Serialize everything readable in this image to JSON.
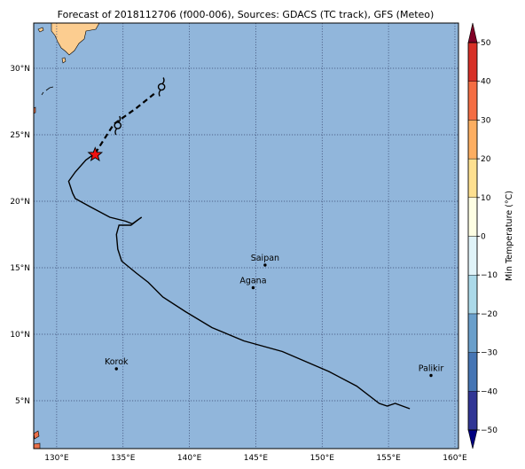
{
  "title": "Forecast of 2018112706 (f000-006), Sources: GDACS (TC track), GFS (Meteo)",
  "map": {
    "ocean_color": "#91b6db",
    "land_color": "#fccd90",
    "grid_style": "dotted",
    "x_ticks": [
      {
        "lon": 130,
        "label": "130°E"
      },
      {
        "lon": 135,
        "label": "135°E"
      },
      {
        "lon": 140,
        "label": "140°E"
      },
      {
        "lon": 145,
        "label": "145°E"
      },
      {
        "lon": 150,
        "label": "150°E"
      },
      {
        "lon": 155,
        "label": "155°E"
      },
      {
        "lon": 160,
        "label": "160°E"
      }
    ],
    "y_ticks": [
      {
        "lat": 5,
        "label": "5°N"
      },
      {
        "lat": 10,
        "label": "10°N"
      },
      {
        "lat": 15,
        "label": "15°N"
      },
      {
        "lat": 20,
        "label": "20°N"
      },
      {
        "lat": 25,
        "label": "25°N"
      },
      {
        "lat": 30,
        "label": "30°N"
      }
    ]
  },
  "track": {
    "observed": [
      [
        156.6,
        4.4
      ],
      [
        155.5,
        4.8
      ],
      [
        154.9,
        4.6
      ],
      [
        154.3,
        4.8
      ],
      [
        152.6,
        6.1
      ],
      [
        150.5,
        7.2
      ],
      [
        147.0,
        8.7
      ],
      [
        144.1,
        9.5
      ],
      [
        141.7,
        10.5
      ],
      [
        139.7,
        11.7
      ],
      [
        138.0,
        12.8
      ],
      [
        136.9,
        13.9
      ],
      [
        136.0,
        14.6
      ],
      [
        134.9,
        15.5
      ],
      [
        134.6,
        16.4
      ],
      [
        134.5,
        17.5
      ],
      [
        134.7,
        18.2
      ],
      [
        135.6,
        18.2
      ],
      [
        136.0,
        18.5
      ],
      [
        136.4,
        18.8
      ],
      [
        135.7,
        18.3
      ],
      [
        135.2,
        18.5
      ],
      [
        134.0,
        18.8
      ],
      [
        132.5,
        19.6
      ],
      [
        131.4,
        20.2
      ],
      [
        131.2,
        20.6
      ],
      [
        130.9,
        21.5
      ],
      [
        131.4,
        22.2
      ],
      [
        132.2,
        23.1
      ],
      [
        132.9,
        23.6
      ]
    ],
    "forecast": [
      [
        132.9,
        23.6
      ],
      [
        134.3,
        25.8
      ],
      [
        136.0,
        27.0
      ],
      [
        137.5,
        28.2
      ]
    ],
    "current_position": {
      "lon": 132.9,
      "lat": 23.5
    },
    "forecast_symbols": [
      {
        "lon": 134.6,
        "lat": 25.7
      },
      {
        "lon": 137.9,
        "lat": 28.6
      }
    ],
    "line_color": "#000000",
    "marker_color": "#ee1111"
  },
  "cities": [
    {
      "name": "Saipan",
      "lon": 145.7,
      "lat": 15.2
    },
    {
      "name": "Agana",
      "lon": 144.8,
      "lat": 13.5
    },
    {
      "name": "Korok",
      "lon": 134.5,
      "lat": 7.4
    },
    {
      "name": "Palikir",
      "lon": 158.2,
      "lat": 6.9
    }
  ],
  "colorbar": {
    "label": "Min Temperature (°C)",
    "min": -50,
    "max": 50,
    "tick_values": [
      -50,
      -40,
      -30,
      -20,
      -10,
      0,
      10,
      20,
      30,
      40,
      50
    ],
    "tick_labels": [
      "−50",
      "−40",
      "−30",
      "−20",
      "−10",
      "0",
      "10",
      "20",
      "30",
      "40",
      "50"
    ],
    "colors": [
      "#313695",
      "#4575b4",
      "#6a9fcb",
      "#abd9e9",
      "#e0f3f8",
      "#fefee3",
      "#fee090",
      "#fdae61",
      "#f46d43",
      "#d73027",
      "#a50026"
    ],
    "under_color": "#000080",
    "over_color": "#800026"
  }
}
